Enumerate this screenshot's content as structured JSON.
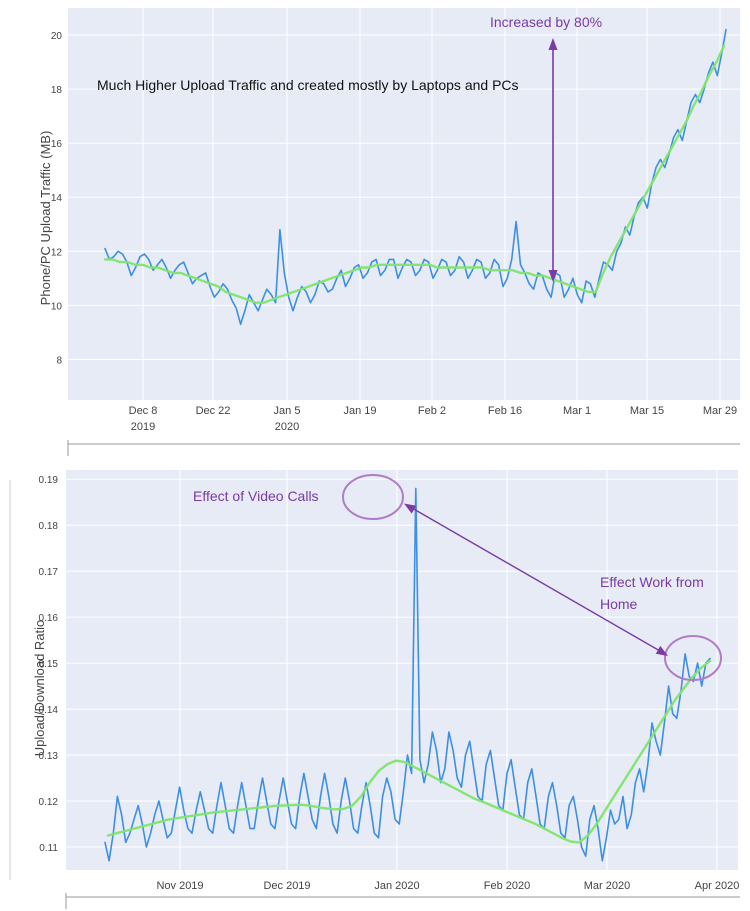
{
  "chart_data": [
    {
      "type": "line",
      "ylabel": "Phone/PC Upload Traffic (MB)",
      "ylim": [
        6.5,
        21
      ],
      "y_ticks": [
        "8",
        "10",
        "12",
        "14",
        "16",
        "18",
        "20"
      ],
      "x_ticks": [
        {
          "label": "Dec 8",
          "sub": "2019"
        },
        {
          "label": "Dec 22",
          "sub": ""
        },
        {
          "label": "Jan 5",
          "sub": "2020"
        },
        {
          "label": "Jan 19",
          "sub": ""
        },
        {
          "label": "Feb 2",
          "sub": ""
        },
        {
          "label": "Feb 16",
          "sub": ""
        },
        {
          "label": "Mar 1",
          "sub": ""
        },
        {
          "label": "Mar 15",
          "sub": ""
        },
        {
          "label": "Mar 29",
          "sub": ""
        }
      ],
      "x_start": "2019-11-29",
      "grid": true,
      "annotations": {
        "headline": "Much Higher Upload Traffic and created mostly by Laptops and PCs",
        "arrow_label": "Increased by 80%"
      },
      "series": [
        {
          "name": "",
          "color": "#3d8fe6",
          "values": [
            12.1,
            11.7,
            11.8,
            12.0,
            11.9,
            11.6,
            11.1,
            11.4,
            11.8,
            11.9,
            11.7,
            11.3,
            11.5,
            11.7,
            11.4,
            11.0,
            11.3,
            11.5,
            11.6,
            11.2,
            10.8,
            11.0,
            11.1,
            11.2,
            10.7,
            10.3,
            10.5,
            10.8,
            10.6,
            10.2,
            9.9,
            9.3,
            9.8,
            10.4,
            10.1,
            9.8,
            10.2,
            10.6,
            10.4,
            10.1,
            12.8,
            11.2,
            10.3,
            9.8,
            10.3,
            10.7,
            10.5,
            10.1,
            10.4,
            10.9,
            10.8,
            10.5,
            10.6,
            11.0,
            11.3,
            10.7,
            11.0,
            11.4,
            11.5,
            11.0,
            11.2,
            11.6,
            11.7,
            11.1,
            11.3,
            11.7,
            11.7,
            11.0,
            11.4,
            11.7,
            11.6,
            11.1,
            11.3,
            11.7,
            11.6,
            11.0,
            11.3,
            11.7,
            11.6,
            11.1,
            11.3,
            11.8,
            11.6,
            11.0,
            11.3,
            11.7,
            11.6,
            11.0,
            11.2,
            11.7,
            11.5,
            10.7,
            11.0,
            11.7,
            13.1,
            11.5,
            11.2,
            10.8,
            10.6,
            11.2,
            11.1,
            10.6,
            10.3,
            11.2,
            11.1,
            10.3,
            10.6,
            11.0,
            10.4,
            10.1,
            10.9,
            10.8,
            10.3,
            11.0,
            11.6,
            11.5,
            11.3,
            12.0,
            12.3,
            12.9,
            12.6,
            13.3,
            13.8,
            14.0,
            13.6,
            14.5,
            15.1,
            15.4,
            15.1,
            15.6,
            16.2,
            16.5,
            16.1,
            16.8,
            17.5,
            17.8,
            17.5,
            18.0,
            18.6,
            19.0,
            18.5,
            19.3,
            20.2
          ]
        },
        {
          "name": "",
          "color": "#7ee56a",
          "values": [
            11.7,
            11.7,
            11.6,
            11.6,
            11.5,
            11.5,
            11.4,
            11.4,
            11.3,
            11.2,
            11.2,
            11.1,
            11.0,
            10.9,
            10.8,
            10.7,
            10.5,
            10.4,
            10.3,
            10.2,
            10.1,
            10.1,
            10.2,
            10.3,
            10.4,
            10.5,
            10.6,
            10.7,
            10.8,
            10.9,
            11.0,
            11.1,
            11.2,
            11.3,
            11.4,
            11.4,
            11.5,
            11.5,
            11.5,
            11.5,
            11.5,
            11.5,
            11.5,
            11.5,
            11.4,
            11.4,
            11.4,
            11.4,
            11.4,
            11.4,
            11.4,
            11.3,
            11.3,
            11.3,
            11.3,
            11.2,
            11.2,
            11.1,
            11.1,
            11.0,
            10.9,
            10.8,
            10.7,
            10.6,
            10.5,
            10.5,
            11.2,
            11.8,
            12.3,
            12.8,
            13.3,
            13.8,
            14.3,
            14.8,
            15.3,
            15.8,
            16.3,
            16.8,
            17.4,
            17.9,
            18.5,
            19.0,
            19.6
          ]
        }
      ]
    },
    {
      "type": "line",
      "ylabel": "Upload/Download Ratio",
      "ylim": [
        0.105,
        0.192
      ],
      "y_ticks": [
        "0.11",
        "0.12",
        "0.13",
        "0.14",
        "0.15",
        "0.16",
        "0.17",
        "0.18",
        "0.19"
      ],
      "x_ticks": [
        {
          "label": "Nov 2019",
          "sub": ""
        },
        {
          "label": "Dec 2019",
          "sub": ""
        },
        {
          "label": "Jan 2020",
          "sub": ""
        },
        {
          "label": "Feb 2020",
          "sub": ""
        },
        {
          "label": "Mar 2020",
          "sub": ""
        },
        {
          "label": "Apr 2020",
          "sub": ""
        }
      ],
      "x_start": "2019-10-10",
      "grid": true,
      "annotations": {
        "video_calls": "Effect of Video Calls",
        "wfh_line1": "Effect Work from",
        "wfh_line2": "Home"
      },
      "series": [
        {
          "name": "",
          "color": "#3d8fe6",
          "values": [
            0.111,
            0.107,
            0.113,
            0.121,
            0.117,
            0.111,
            0.113,
            0.116,
            0.119,
            0.115,
            0.11,
            0.113,
            0.117,
            0.12,
            0.116,
            0.112,
            0.113,
            0.118,
            0.123,
            0.118,
            0.114,
            0.113,
            0.118,
            0.122,
            0.118,
            0.114,
            0.113,
            0.119,
            0.124,
            0.119,
            0.114,
            0.113,
            0.119,
            0.124,
            0.119,
            0.114,
            0.114,
            0.12,
            0.125,
            0.12,
            0.115,
            0.114,
            0.12,
            0.125,
            0.12,
            0.115,
            0.114,
            0.121,
            0.126,
            0.121,
            0.116,
            0.114,
            0.121,
            0.126,
            0.121,
            0.115,
            0.113,
            0.12,
            0.125,
            0.12,
            0.114,
            0.113,
            0.119,
            0.124,
            0.119,
            0.113,
            0.112,
            0.121,
            0.125,
            0.122,
            0.116,
            0.115,
            0.122,
            0.13,
            0.126,
            0.188,
            0.129,
            0.124,
            0.128,
            0.135,
            0.131,
            0.124,
            0.127,
            0.135,
            0.131,
            0.125,
            0.123,
            0.13,
            0.133,
            0.127,
            0.121,
            0.12,
            0.128,
            0.131,
            0.125,
            0.119,
            0.118,
            0.126,
            0.129,
            0.123,
            0.117,
            0.116,
            0.124,
            0.127,
            0.121,
            0.115,
            0.114,
            0.121,
            0.124,
            0.119,
            0.113,
            0.112,
            0.119,
            0.121,
            0.116,
            0.11,
            0.108,
            0.116,
            0.119,
            0.114,
            0.107,
            0.112,
            0.118,
            0.115,
            0.116,
            0.121,
            0.114,
            0.117,
            0.124,
            0.127,
            0.122,
            0.128,
            0.137,
            0.133,
            0.13,
            0.137,
            0.145,
            0.139,
            0.138,
            0.144,
            0.152,
            0.147,
            0.146,
            0.15,
            0.145,
            0.15,
            0.151
          ]
        },
        {
          "name": "",
          "color": "#7ee56a",
          "values": [
            0.1125,
            0.113,
            0.1135,
            0.114,
            0.1145,
            0.115,
            0.1155,
            0.116,
            0.1163,
            0.1166,
            0.1169,
            0.1172,
            0.1175,
            0.1177,
            0.1179,
            0.1181,
            0.1183,
            0.1185,
            0.1187,
            0.1189,
            0.119,
            0.1191,
            0.1192,
            0.119,
            0.1187,
            0.1184,
            0.1182,
            0.1183,
            0.119,
            0.121,
            0.124,
            0.1265,
            0.128,
            0.1288,
            0.1285,
            0.1275,
            0.1265,
            0.1255,
            0.1245,
            0.1235,
            0.1225,
            0.1215,
            0.1205,
            0.1198,
            0.119,
            0.1182,
            0.1174,
            0.1166,
            0.1158,
            0.115,
            0.114,
            0.113,
            0.112,
            0.1112,
            0.111,
            0.1125,
            0.115,
            0.118,
            0.121,
            0.124,
            0.127,
            0.13,
            0.133,
            0.136,
            0.139,
            0.142,
            0.1445,
            0.147,
            0.149,
            0.1505
          ]
        }
      ]
    }
  ]
}
